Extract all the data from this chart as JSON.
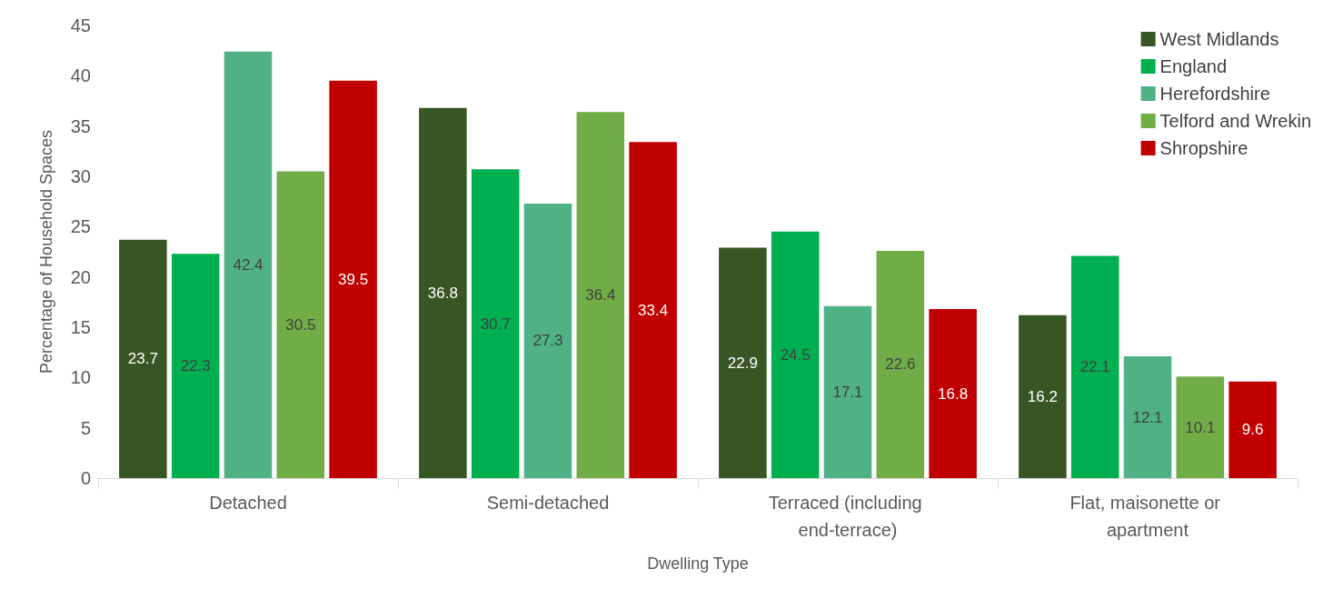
{
  "chart_data": {
    "type": "bar",
    "xlabel": "Dwelling Type",
    "ylabel": "Percentage of Household Spaces",
    "categories": [
      "Detached",
      "Semi-detached",
      "Terraced (including end-terrace)",
      "Flat, maisonette or apartment"
    ],
    "series": [
      {
        "name": "West Midlands",
        "color": "#375623",
        "values": [
          23.7,
          36.8,
          22.9,
          16.2
        ]
      },
      {
        "name": "England",
        "color": "#00b050",
        "values": [
          22.3,
          30.7,
          24.5,
          22.1
        ]
      },
      {
        "name": "Herefordshire",
        "color": "#4fb185",
        "values": [
          42.4,
          27.3,
          17.1,
          12.1
        ]
      },
      {
        "name": "Telford and Wrekin",
        "color": "#70ad47",
        "values": [
          30.5,
          36.4,
          22.6,
          10.1
        ]
      },
      {
        "name": "Shropshire",
        "color": "#c00000",
        "values": [
          39.5,
          33.4,
          16.8,
          9.6
        ]
      }
    ],
    "ylim": [
      0,
      45
    ],
    "yticks": [
      0,
      5,
      10,
      15,
      20,
      25,
      30,
      35,
      40,
      45
    ],
    "grid": false,
    "legend": "top right",
    "data_labels": true
  }
}
